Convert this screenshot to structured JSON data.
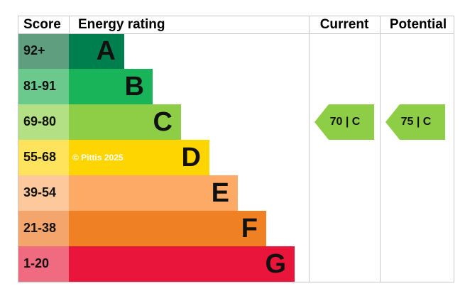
{
  "header": {
    "score": "Score",
    "energy_rating": "Energy rating",
    "current": "Current",
    "potential": "Potential"
  },
  "rows": [
    {
      "score": "92+",
      "letter": "A"
    },
    {
      "score": "81-91",
      "letter": "B"
    },
    {
      "score": "69-80",
      "letter": "C"
    },
    {
      "score": "55-68",
      "letter": "D"
    },
    {
      "score": "39-54",
      "letter": "E"
    },
    {
      "score": "21-38",
      "letter": "F"
    },
    {
      "score": "1-20",
      "letter": "G"
    }
  ],
  "watermark": "© Pittis 2025",
  "current": "70 | C",
  "potential": "75 | C"
}
